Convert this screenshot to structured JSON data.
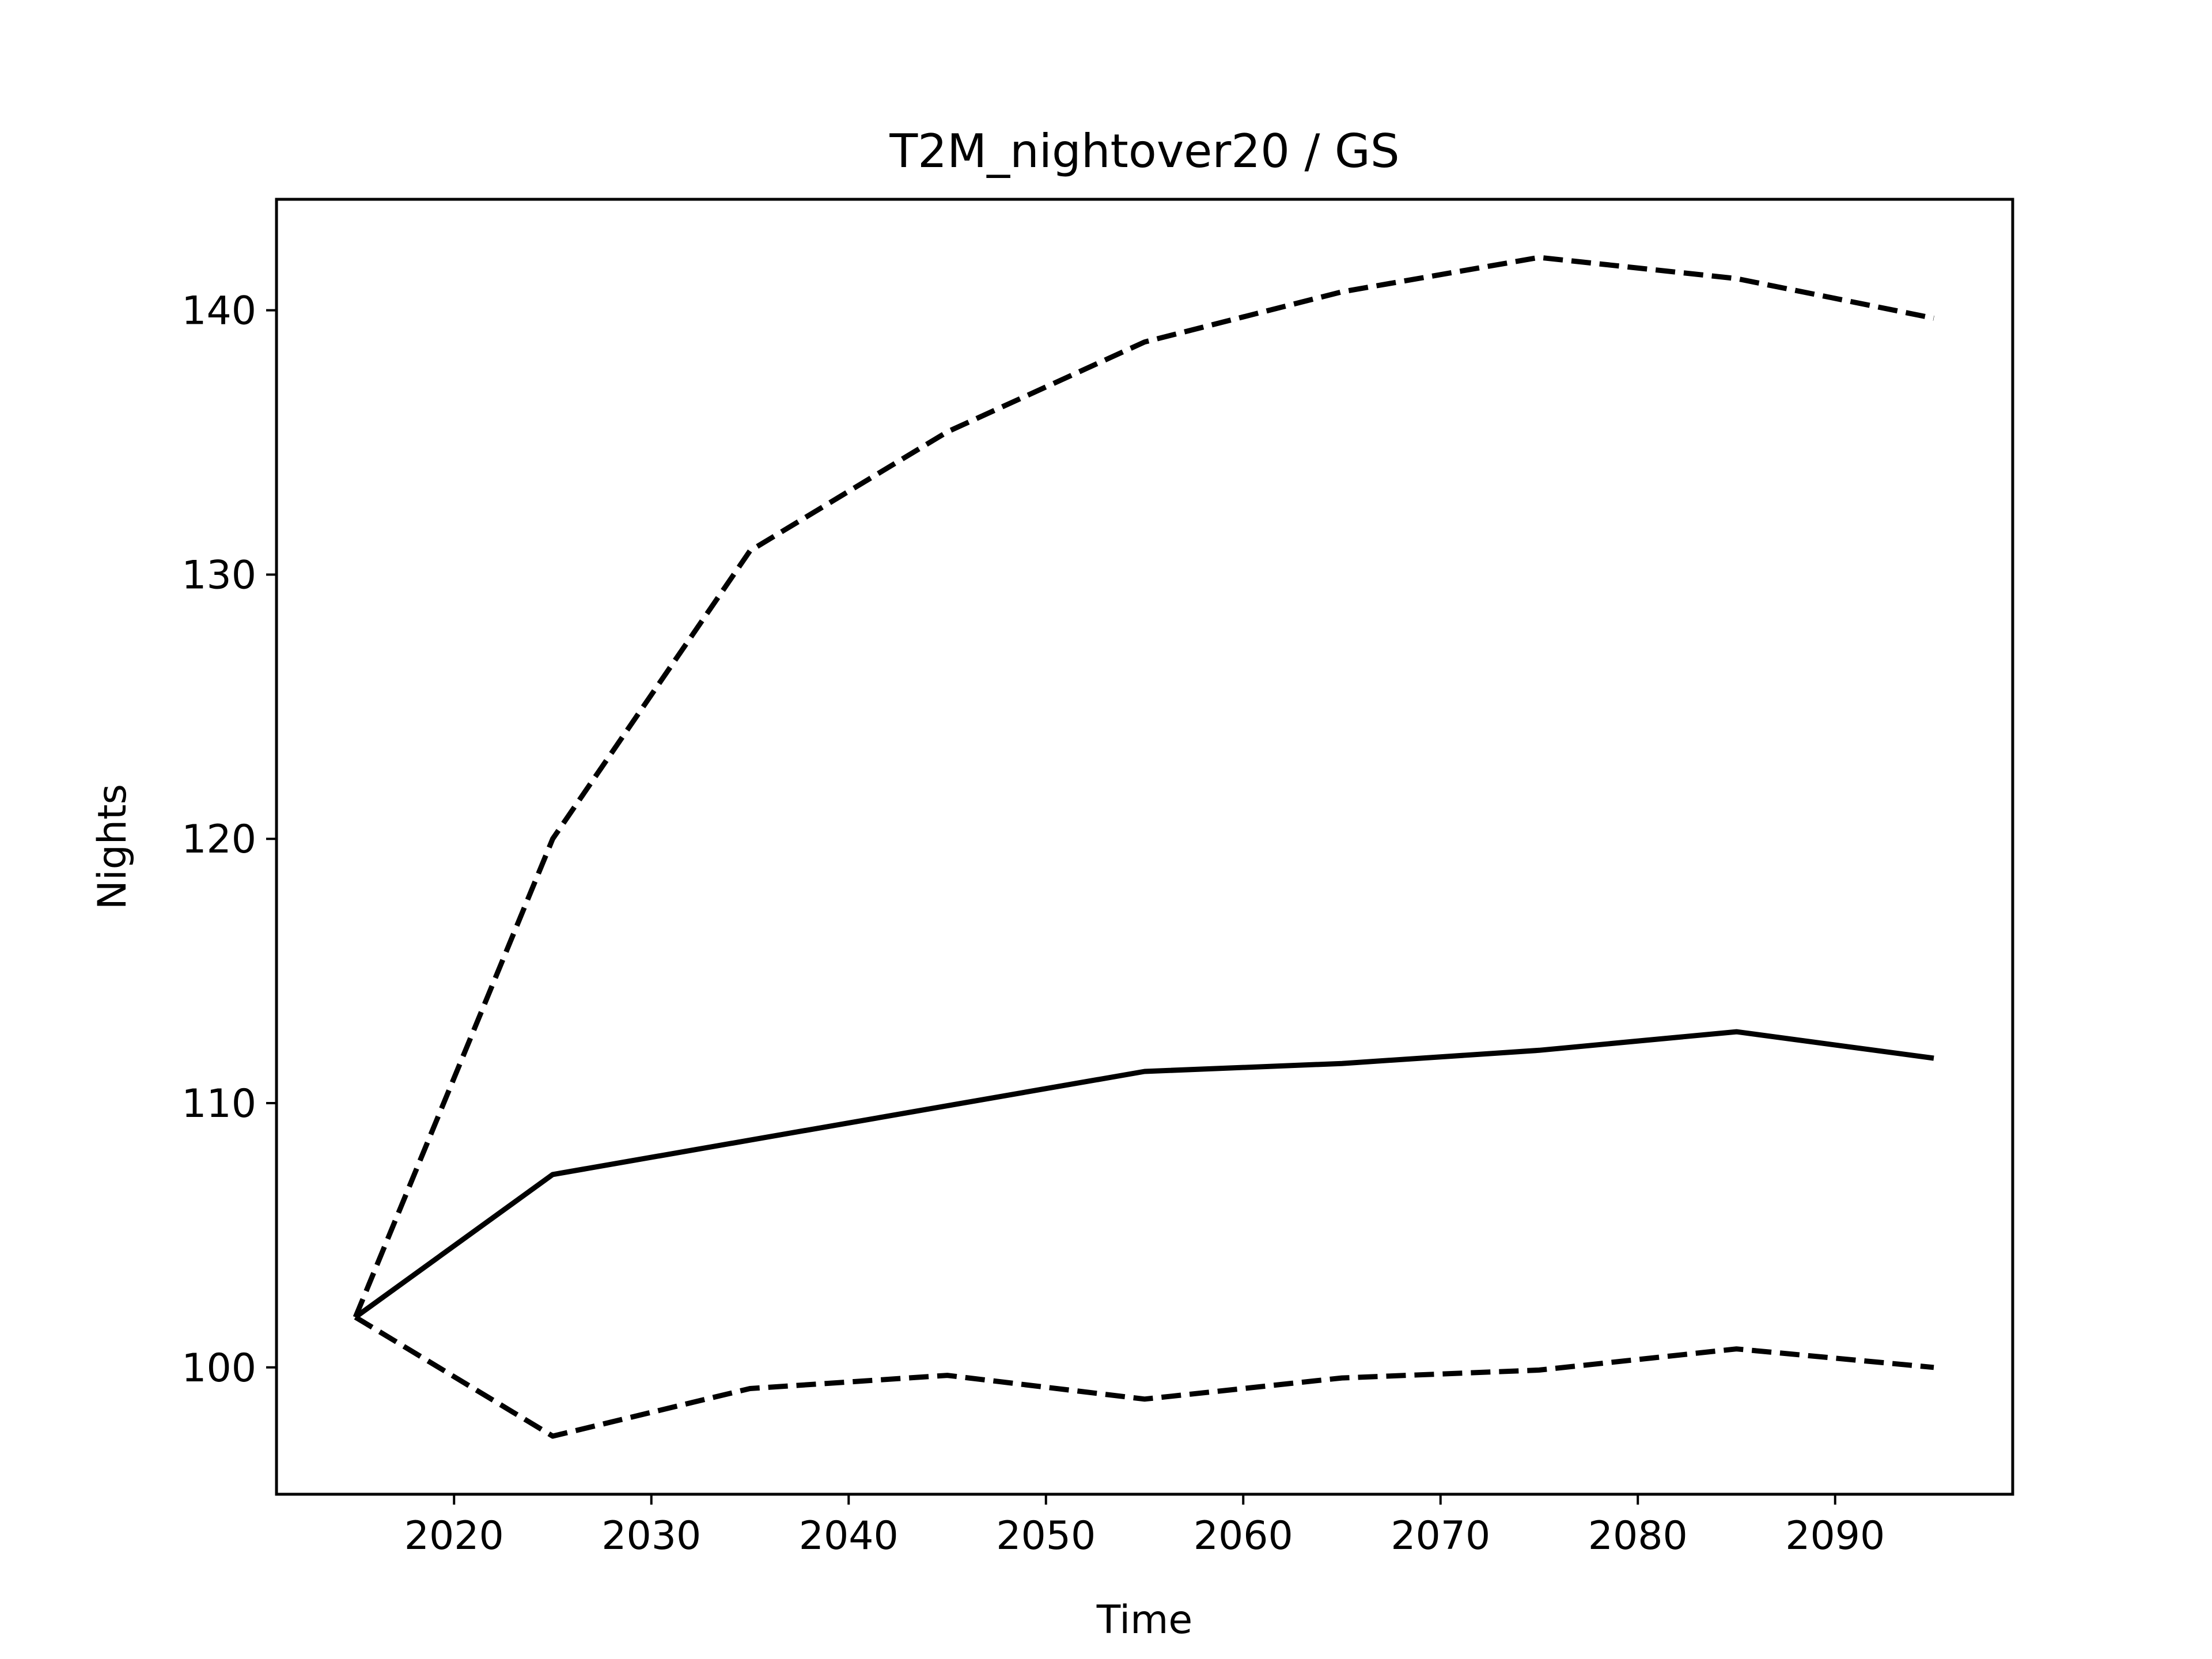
{
  "chart_data": {
    "type": "line",
    "title": "T2M_nightover20 / GS",
    "xlabel": "Time",
    "ylabel": "Nights",
    "xlim": [
      2011,
      2099
    ],
    "ylim": [
      95.2,
      144.2
    ],
    "xticks": [
      2020,
      2030,
      2040,
      2050,
      2060,
      2070,
      2080,
      2090
    ],
    "yticks": [
      100,
      110,
      120,
      130,
      140
    ],
    "grid": false,
    "legend": "none",
    "x": [
      2015,
      2025,
      2035,
      2045,
      2055,
      2065,
      2075,
      2085,
      2095
    ],
    "series": [
      {
        "style": "solid",
        "color": "#000000",
        "values": [
          101.9,
          107.3,
          108.6,
          109.9,
          111.2,
          111.5,
          112.0,
          112.7,
          111.7
        ]
      },
      {
        "style": "dashed",
        "color": "#000000",
        "values": [
          101.9,
          120.0,
          130.9,
          135.4,
          138.8,
          140.7,
          142.0,
          141.2,
          139.7
        ]
      },
      {
        "style": "dashed",
        "color": "#000000",
        "values": [
          101.9,
          97.4,
          99.2,
          99.7,
          98.8,
          99.6,
          99.9,
          100.7,
          100.0
        ]
      }
    ]
  }
}
